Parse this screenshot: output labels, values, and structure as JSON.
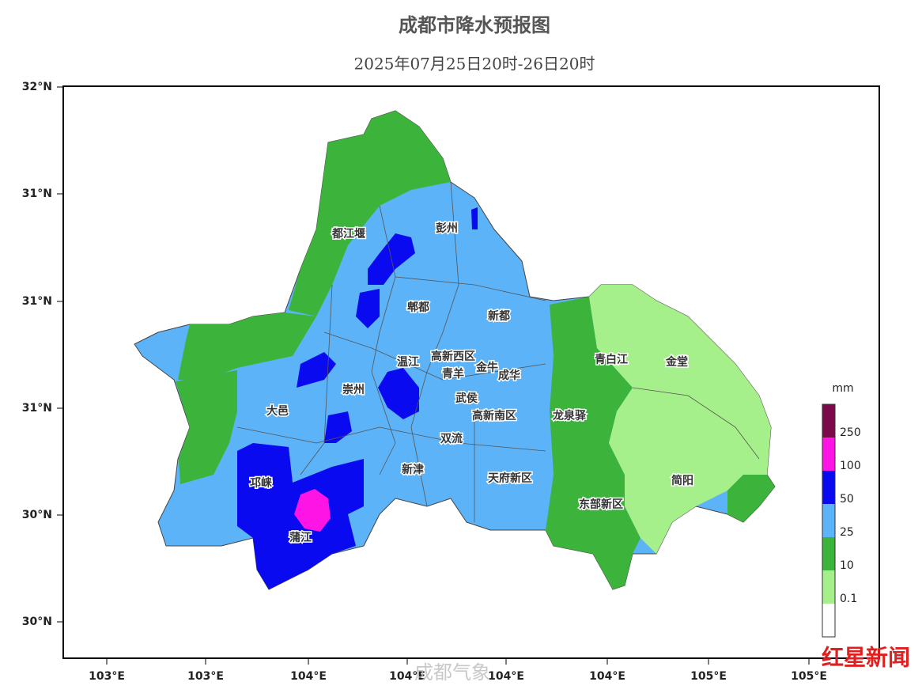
{
  "title": "成都市降水预报图",
  "subtitle": "2025年07月25日20时-26日20时",
  "y_axis_labels": [
    "32°N",
    "31°N",
    "31°N",
    "31°N",
    "30°N",
    "30°N"
  ],
  "x_axis_labels": [
    "103°E",
    "103°E",
    "104°E",
    "104°E",
    "104°E",
    "104°E",
    "105°E",
    "105°E"
  ],
  "legend": {
    "unit": "mm",
    "labels": [
      "250",
      "100",
      "50",
      "25",
      "10",
      "0.1"
    ]
  },
  "districts": [
    "都江堰",
    "彭州",
    "郫都",
    "新都",
    "温江",
    "高新西区",
    "青羊",
    "金牛",
    "成华",
    "崇州",
    "大邑",
    "武侯",
    "高新南区",
    "双流",
    "龙泉驿",
    "青白江",
    "金堂",
    "新津",
    "天府新区",
    "邛崃",
    "东部新区",
    "简阳",
    "蒲江"
  ],
  "watermarks": [
    "成都气象",
    "红星新闻"
  ]
}
